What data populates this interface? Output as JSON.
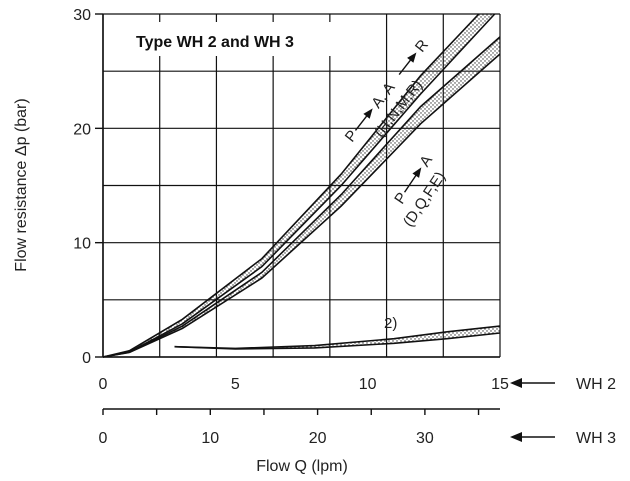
{
  "chart_data": {
    "type": "line",
    "title": "Type WH 2 and WH 3",
    "ylabel": "Flow resistance  Δp (bar)",
    "xlabel": "Flow Q (lpm)",
    "ylim": [
      0,
      30
    ],
    "yticks": [
      "0",
      "10",
      "20",
      "30"
    ],
    "grid": true,
    "x_axes": [
      {
        "name": "WH 2",
        "range": [
          0,
          15
        ],
        "ticks": [
          "0",
          "5",
          "10",
          "15"
        ]
      },
      {
        "name": "WH 3",
        "range": [
          0,
          37
        ],
        "ticks": [
          "0",
          "10",
          "20",
          "30"
        ]
      }
    ],
    "bands": [
      {
        "label": [
          "P",
          "A, A",
          "R",
          "(H,N,M,R)"
        ],
        "lower": {
          "x": [
            0,
            1,
            3,
            6,
            9,
            12,
            14.8
          ],
          "y": [
            0,
            0.45,
            2.9,
            7.9,
            15.0,
            23.0,
            30.0
          ]
        },
        "upper": {
          "x": [
            0,
            1,
            3,
            6,
            9,
            12,
            14.2
          ],
          "y": [
            0,
            0.55,
            3.3,
            8.6,
            16.0,
            24.6,
            30.0
          ]
        }
      },
      {
        "label": [
          "P",
          "A",
          "(D,Q,F,E)"
        ],
        "lower": {
          "x": [
            0,
            1,
            3,
            6,
            9,
            12,
            15
          ],
          "y": [
            0,
            0.4,
            2.5,
            6.9,
            13.2,
            20.4,
            26.5
          ]
        },
        "upper": {
          "x": [
            0,
            1,
            3,
            6,
            9,
            12,
            15
          ],
          "y": [
            0,
            0.42,
            2.7,
            7.4,
            14.2,
            21.9,
            28.0
          ]
        }
      },
      {
        "label": [
          "2)"
        ],
        "lower": {
          "x": [
            2.7,
            5,
            8,
            11,
            13,
            15
          ],
          "y": [
            0.9,
            0.7,
            0.8,
            1.2,
            1.6,
            2.1
          ]
        },
        "upper": {
          "x": [
            2.7,
            5,
            8,
            11,
            13,
            15
          ],
          "y": [
            0.9,
            0.75,
            1.0,
            1.6,
            2.2,
            2.7
          ]
        }
      }
    ]
  },
  "legend_axes": {
    "wh2_label": "WH 2",
    "wh3_label": "WH 3"
  }
}
